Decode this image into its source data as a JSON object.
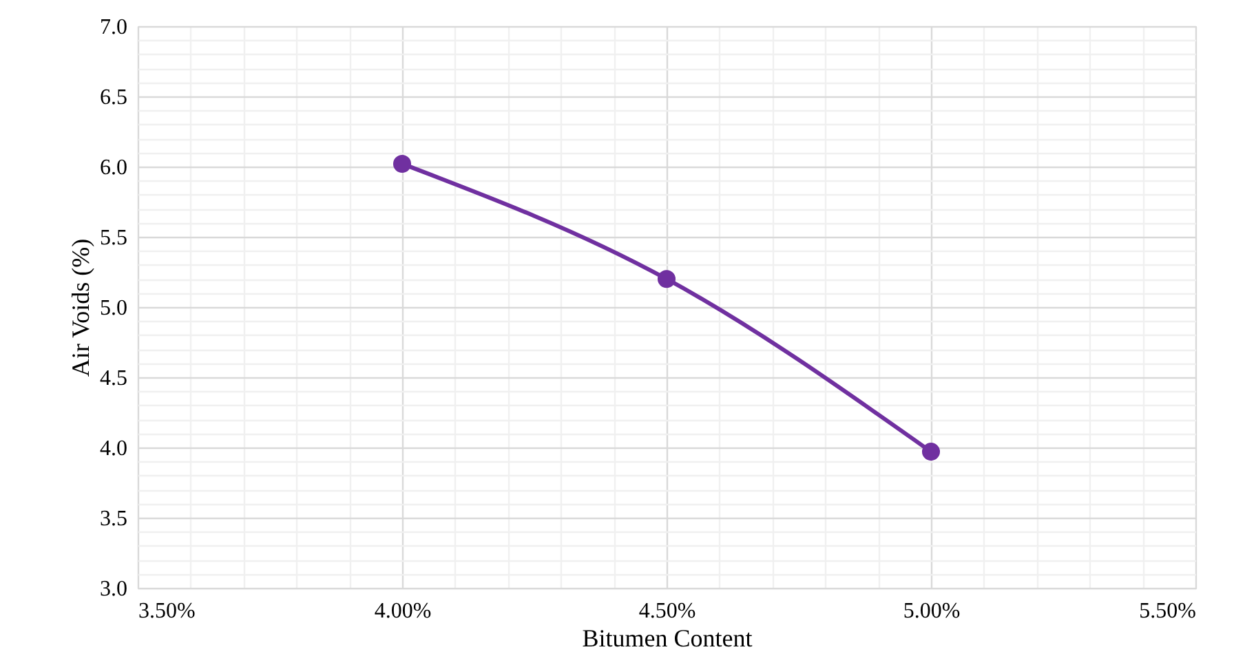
{
  "chart_data": {
    "type": "line",
    "xlabel": "Bitumen Content",
    "ylabel": "Air Voids (%)",
    "x": [
      4.0,
      4.5,
      5.0
    ],
    "series": [
      {
        "color": "#7030a0",
        "values": [
          6.02,
          5.2,
          3.97
        ]
      }
    ],
    "xlim": [
      3.5,
      5.5
    ],
    "xticks": [
      {
        "value": 3.5,
        "label": "3.50%"
      },
      {
        "value": 3.6,
        "label": null
      },
      {
        "value": 3.7,
        "label": null
      },
      {
        "value": 3.8,
        "label": null
      },
      {
        "value": 3.9,
        "label": null
      },
      {
        "value": 4.0,
        "label": "4.00%"
      },
      {
        "value": 4.1,
        "label": null
      },
      {
        "value": 4.2,
        "label": null
      },
      {
        "value": 4.3,
        "label": null
      },
      {
        "value": 4.4,
        "label": null
      },
      {
        "value": 4.5,
        "label": "4.50%"
      },
      {
        "value": 4.6,
        "label": null
      },
      {
        "value": 4.7,
        "label": null
      },
      {
        "value": 4.8,
        "label": null
      },
      {
        "value": 4.9,
        "label": null
      },
      {
        "value": 5.0,
        "label": "5.00%"
      },
      {
        "value": 5.1,
        "label": null
      },
      {
        "value": 5.2,
        "label": null
      },
      {
        "value": 5.3,
        "label": null
      },
      {
        "value": 5.4,
        "label": null
      },
      {
        "value": 5.5,
        "label": "5.50%"
      }
    ],
    "ylim": [
      3.0,
      7.0
    ],
    "yticks": [
      {
        "value": 3.0,
        "label": "3.0"
      },
      {
        "value": 3.1,
        "label": null
      },
      {
        "value": 3.2,
        "label": null
      },
      {
        "value": 3.3,
        "label": null
      },
      {
        "value": 3.4,
        "label": null
      },
      {
        "value": 3.5,
        "label": "3.5"
      },
      {
        "value": 3.6,
        "label": null
      },
      {
        "value": 3.7,
        "label": null
      },
      {
        "value": 3.8,
        "label": null
      },
      {
        "value": 3.9,
        "label": null
      },
      {
        "value": 4.0,
        "label": "4.0"
      },
      {
        "value": 4.1,
        "label": null
      },
      {
        "value": 4.2,
        "label": null
      },
      {
        "value": 4.3,
        "label": null
      },
      {
        "value": 4.4,
        "label": null
      },
      {
        "value": 4.5,
        "label": "4.5"
      },
      {
        "value": 4.6,
        "label": null
      },
      {
        "value": 4.7,
        "label": null
      },
      {
        "value": 4.8,
        "label": null
      },
      {
        "value": 4.9,
        "label": null
      },
      {
        "value": 5.0,
        "label": "5.0"
      },
      {
        "value": 5.1,
        "label": null
      },
      {
        "value": 5.2,
        "label": null
      },
      {
        "value": 5.3,
        "label": null
      },
      {
        "value": 5.4,
        "label": null
      },
      {
        "value": 5.5,
        "label": "5.5"
      },
      {
        "value": 5.6,
        "label": null
      },
      {
        "value": 5.7,
        "label": null
      },
      {
        "value": 5.8,
        "label": null
      },
      {
        "value": 5.9,
        "label": null
      },
      {
        "value": 6.0,
        "label": "6.0"
      },
      {
        "value": 6.1,
        "label": null
      },
      {
        "value": 6.2,
        "label": null
      },
      {
        "value": 6.3,
        "label": null
      },
      {
        "value": 6.4,
        "label": null
      },
      {
        "value": 6.5,
        "label": "6.5"
      },
      {
        "value": 6.6,
        "label": null
      },
      {
        "value": 6.7,
        "label": null
      },
      {
        "value": 6.8,
        "label": null
      },
      {
        "value": 6.9,
        "label": null
      },
      {
        "value": 7.0,
        "label": "7.0"
      }
    ],
    "grid": true,
    "marker": "circle",
    "line_style": "solid"
  }
}
